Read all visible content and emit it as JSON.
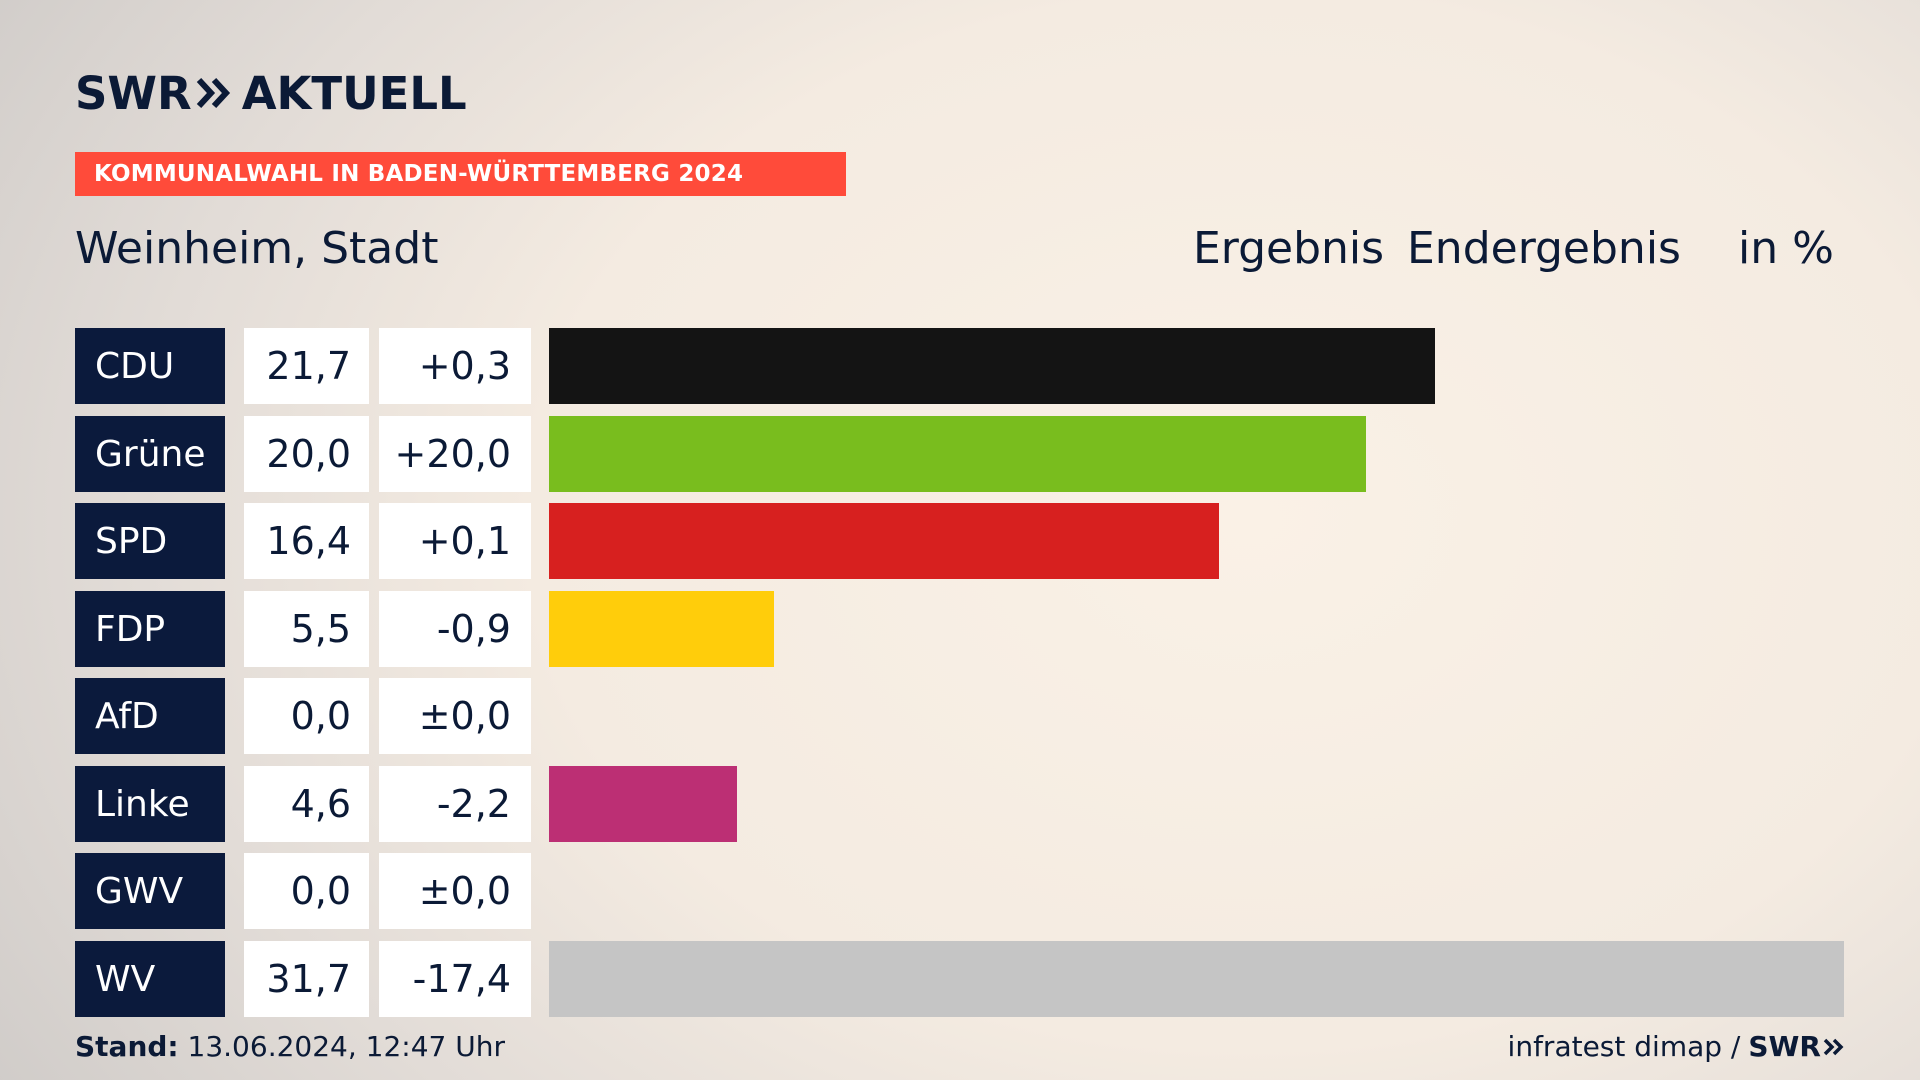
{
  "brand": {
    "logo_left": "SWR",
    "logo_right": "AKTUELL"
  },
  "banner": "KOMMUNALWAHL IN BADEN-WÜRTTEMBERG 2024",
  "place": "Weinheim, Stadt",
  "header": {
    "ergebnis": "Ergebnis",
    "status": "Endergebnis",
    "unit": "in %"
  },
  "footer": {
    "stand_label": "Stand:",
    "stand_value": "13.06.2024, 12:47 Uhr",
    "source": "infratest dimap /",
    "source_logo": "SWR"
  },
  "chart_data": {
    "type": "bar",
    "orientation": "horizontal",
    "categories": [
      "CDU",
      "Grüne",
      "SPD",
      "FDP",
      "AfD",
      "Linke",
      "GWV",
      "WV"
    ],
    "values": [
      21.7,
      20.0,
      16.4,
      5.5,
      0.0,
      4.6,
      0.0,
      31.7
    ],
    "values_label": [
      "21,7",
      "20,0",
      "16,4",
      "5,5",
      "0,0",
      "4,6",
      "0,0",
      "31,7"
    ],
    "diffs": [
      0.3,
      20.0,
      0.1,
      -0.9,
      0.0,
      -2.2,
      0.0,
      -17.4
    ],
    "diffs_label": [
      "+0,3",
      "+20,0",
      "+0,1",
      "-0,9",
      "±0,0",
      "-2,2",
      "±0,0",
      "-17,4"
    ],
    "colors": [
      "#141414",
      "#79bd1e",
      "#d7201f",
      "#ffcd0b",
      "#009de0",
      "#bc2f74",
      "#b5b5b5",
      "#c5c5c5"
    ],
    "xlim": [
      0,
      31.7
    ]
  }
}
